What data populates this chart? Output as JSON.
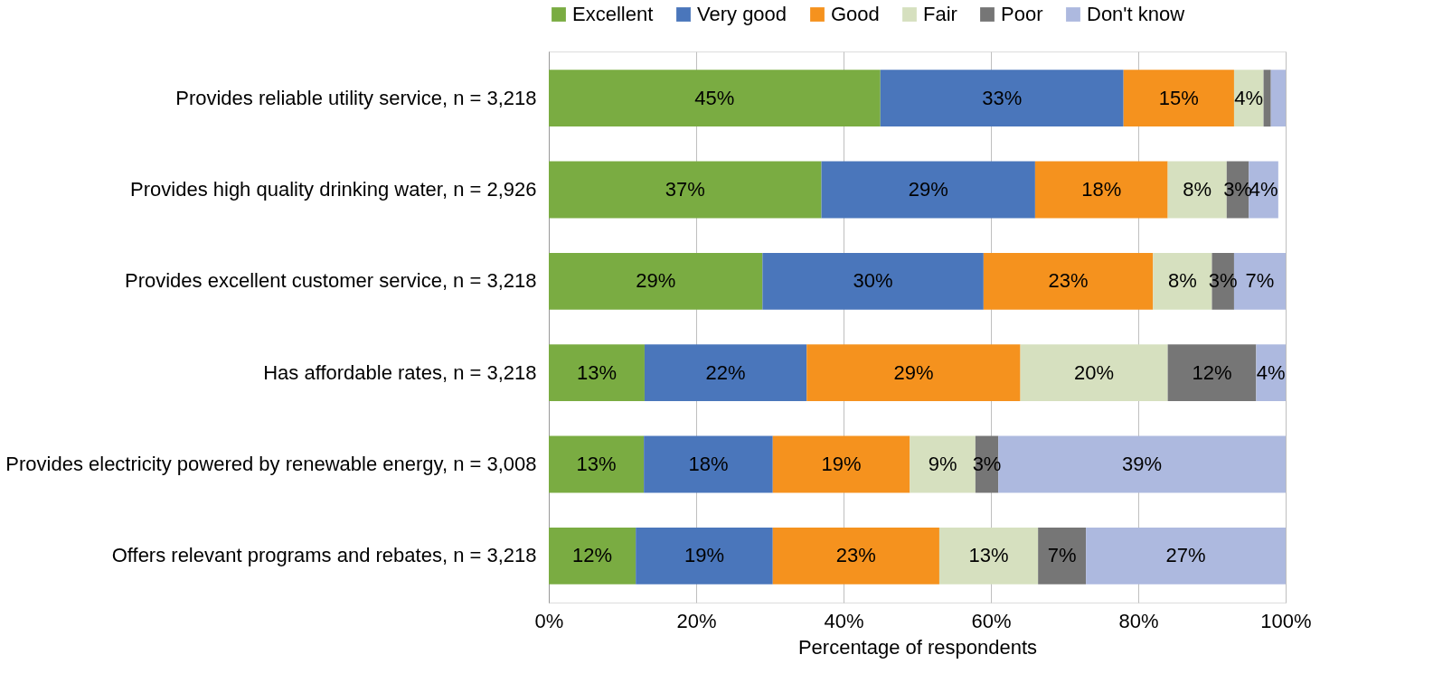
{
  "chart_data": {
    "type": "bar",
    "orientation": "horizontal",
    "stacked": true,
    "categories": [
      "Provides reliable utility service, n = 3,218",
      "Provides high quality drinking water, n = 2,926",
      "Provides excellent customer service, n = 3,218",
      "Has affordable rates, n = 3,218",
      "Provides electricity powered by renewable energy, n = 3,008",
      "Offers relevant programs and rebates, n = 3,218"
    ],
    "series": [
      {
        "name": "Excellent",
        "color": "#7aac42",
        "values": [
          45,
          37,
          29,
          13,
          12.9,
          11.8
        ],
        "value_labels": [
          "45%",
          "37%",
          "29%",
          "13%",
          "13%",
          "12%"
        ]
      },
      {
        "name": "Very good",
        "color": "#4a76bb",
        "values": [
          33,
          29,
          30,
          22,
          17.5,
          18.6
        ],
        "value_labels": [
          "33%",
          "29%",
          "30%",
          "22%",
          "18%",
          "19%"
        ]
      },
      {
        "name": "Good",
        "color": "#f5921e",
        "values": [
          15,
          18,
          23,
          29,
          18.6,
          22.6
        ],
        "value_labels": [
          "15%",
          "18%",
          "23%",
          "29%",
          "19%",
          "23%"
        ]
      },
      {
        "name": "Fair",
        "color": "#d6e0bf",
        "values": [
          4,
          8,
          8,
          20,
          8.9,
          13.4
        ],
        "value_labels": [
          "4%",
          "8%",
          "8%",
          "20%",
          "9%",
          "13%"
        ]
      },
      {
        "name": "Poor",
        "color": "#767676",
        "values": [
          1,
          3,
          3,
          12,
          3.1,
          6.5
        ],
        "value_labels": [
          null,
          "3%",
          "3%",
          "12%",
          "3%",
          "7%"
        ]
      },
      {
        "name": "Don't know",
        "color": "#adb9df",
        "values": [
          2,
          4,
          7,
          4,
          39,
          27.1
        ],
        "value_labels": [
          null,
          "4%",
          "7%",
          "4%",
          "39%",
          "27%"
        ]
      }
    ],
    "xlabel": "Percentage of respondents",
    "xlim": [
      0,
      100
    ],
    "xticks": [
      {
        "value": 0,
        "label": "0%"
      },
      {
        "value": 20,
        "label": "20%"
      },
      {
        "value": 40,
        "label": "40%"
      },
      {
        "value": 60,
        "label": "60%"
      },
      {
        "value": 80,
        "label": "80%"
      },
      {
        "value": 100,
        "label": "100%"
      }
    ],
    "grid": "x",
    "legend": "top"
  }
}
